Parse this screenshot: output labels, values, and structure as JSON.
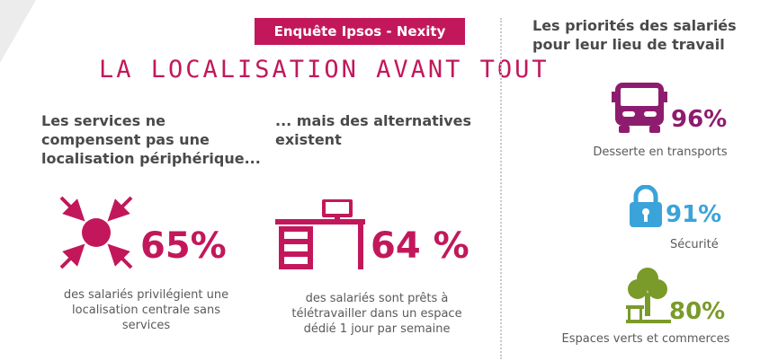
{
  "colors": {
    "magenta": "#c2185b",
    "purple": "#8e1c6e",
    "blue": "#3aa3d9",
    "green": "#7a9a2a",
    "text": "#5a5a5a"
  },
  "header": {
    "badge": "Enquête Ipsos - Nexity",
    "title": "LA LOCALISATION AVANT TOUT"
  },
  "left": {
    "heading_lines": [
      "Les services ne",
      "compensent pas une",
      "localisation périphérique..."
    ],
    "percent": "65%",
    "caption_lines": [
      "des salariés privilégient une",
      "localisation centrale sans",
      "services"
    ],
    "icon": "arrows-converging-icon"
  },
  "middle": {
    "heading_lines": [
      "... mais des alternatives",
      "existent"
    ],
    "percent": "64 %",
    "caption_lines": [
      "des salariés sont prêts à",
      "télétravailler dans un espace",
      "dédié 1 jour par semaine"
    ],
    "icon": "desk-computer-icon"
  },
  "right": {
    "heading_lines": [
      "Les priorités des salariés",
      "pour leur lieu de travail"
    ],
    "items": [
      {
        "icon": "bus-icon",
        "percent": "96%",
        "label": "Desserte en transports"
      },
      {
        "icon": "lock-icon",
        "percent": "91%",
        "label": "Sécurité"
      },
      {
        "icon": "tree-bench-icon",
        "percent": "80%",
        "label": "Espaces verts et commerces"
      }
    ]
  }
}
